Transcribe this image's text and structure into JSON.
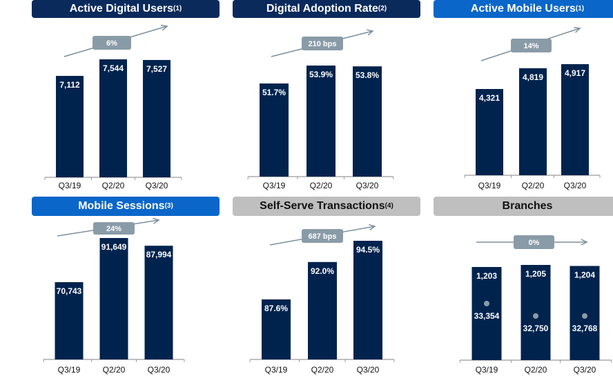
{
  "colors": {
    "bar": "#00234e",
    "header_navy": "#0b2a5c",
    "header_blue": "#0a66c9",
    "header_grey": "#bfbfbf",
    "badge": "#8a9ba8",
    "arrow": "#7d8f9c",
    "axis": "#9a9a9a"
  },
  "chart_data": [
    {
      "type": "bar",
      "title": "Active Digital Users",
      "footnote": "(1)",
      "header_style": "navy",
      "categories": [
        "Q3/19",
        "Q2/20",
        "Q3/20"
      ],
      "values": [
        7112,
        7544,
        7527
      ],
      "labels": [
        "7,112",
        "7,544",
        "7,527"
      ],
      "growth_label": "6%",
      "trend": "up"
    },
    {
      "type": "bar",
      "title": "Digital Adoption Rate",
      "footnote": "(2)",
      "header_style": "navy",
      "categories": [
        "Q3/19",
        "Q2/20",
        "Q3/20"
      ],
      "values": [
        51.7,
        53.9,
        53.8
      ],
      "labels": [
        "51.7%",
        "53.9%",
        "53.8%"
      ],
      "growth_label": "210 bps",
      "trend": "up"
    },
    {
      "type": "bar",
      "title": "Active Mobile Users",
      "footnote": "(1)",
      "header_style": "blue",
      "categories": [
        "Q3/19",
        "Q2/20",
        "Q3/20"
      ],
      "values": [
        4321,
        4819,
        4917
      ],
      "labels": [
        "4,321",
        "4,819",
        "4,917"
      ],
      "growth_label": "14%",
      "trend": "up"
    },
    {
      "type": "bar",
      "title": "Mobile Sessions",
      "footnote": "(3)",
      "header_style": "blue",
      "categories": [
        "Q3/19",
        "Q2/20",
        "Q3/20"
      ],
      "values": [
        70743,
        91649,
        87994
      ],
      "labels": [
        "70,743",
        "91,649",
        "87,994"
      ],
      "growth_label": "24%",
      "trend": "up"
    },
    {
      "type": "bar",
      "title": "Self-Serve Transactions",
      "footnote": "(4)",
      "header_style": "grey",
      "categories": [
        "Q3/19",
        "Q2/20",
        "Q3/20"
      ],
      "values": [
        87.6,
        92.0,
        94.5
      ],
      "labels": [
        "87.6%",
        "92.0%",
        "94.5%"
      ],
      "growth_label": "687 bps",
      "trend": "up"
    },
    {
      "type": "bar",
      "title": "Branches",
      "footnote": "",
      "header_style": "grey",
      "categories": [
        "Q3/19",
        "Q2/20",
        "Q3/20"
      ],
      "values": [
        1203,
        1205,
        1204
      ],
      "labels": [
        "1,203",
        "1,205",
        "1,204"
      ],
      "secondary_series": {
        "values": [
          33354,
          32750,
          32768
        ],
        "labels": [
          "33,354",
          "32,750",
          "32,768"
        ]
      },
      "growth_label": "0%",
      "trend": "flat"
    }
  ]
}
